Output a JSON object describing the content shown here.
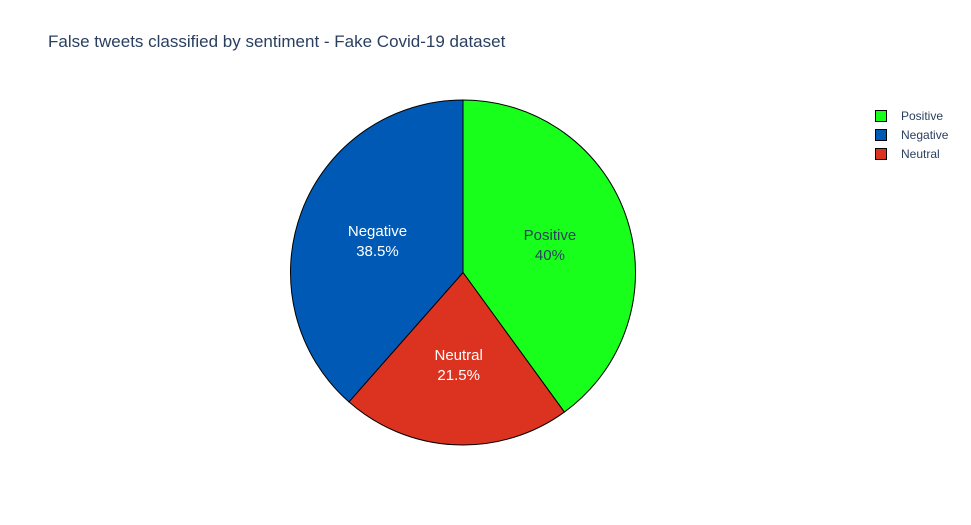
{
  "chart_data": {
    "type": "pie",
    "title": "False tweets classified by sentiment - Fake Covid-19 dataset",
    "slices": [
      {
        "label": "Positive",
        "percent_label": "40%",
        "value": 40.0,
        "color": "#17ff1a",
        "text_color": "#2a3f5f"
      },
      {
        "label": "Neutral",
        "percent_label": "21.5%",
        "value": 21.5,
        "color": "#dc3220",
        "text_color": "#ffffff"
      },
      {
        "label": "Negative",
        "percent_label": "38.5%",
        "value": 38.5,
        "color": "#005ab5",
        "text_color": "#ffffff"
      }
    ],
    "direction": "clockwise",
    "start_angle": "12 o'clock",
    "legend": {
      "placement": "top-right",
      "order": [
        "Positive",
        "Negative",
        "Neutral"
      ]
    }
  }
}
